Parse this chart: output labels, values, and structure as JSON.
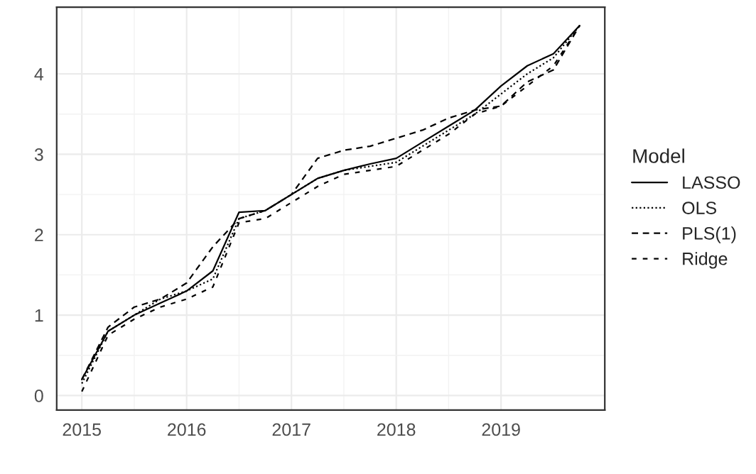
{
  "chart_data": {
    "type": "line",
    "legend_title": "Model",
    "legend": "right",
    "grid": true,
    "x": [
      2015.0,
      2015.25,
      2015.5,
      2015.75,
      2016.0,
      2016.25,
      2016.5,
      2016.75,
      2017.0,
      2017.25,
      2017.5,
      2017.75,
      2018.0,
      2018.25,
      2018.5,
      2018.75,
      2019.0,
      2019.25,
      2019.5,
      2019.75
    ],
    "series": [
      {
        "name": "LASSO",
        "color": "#000000",
        "line_style": "solid",
        "values": [
          0.2,
          0.8,
          1.0,
          1.15,
          1.3,
          1.55,
          2.28,
          2.3,
          2.5,
          2.7,
          2.8,
          2.88,
          2.95,
          3.15,
          3.35,
          3.55,
          3.85,
          4.1,
          4.25,
          4.6
        ]
      },
      {
        "name": "OLS",
        "color": "#000000",
        "line_style": "dotted",
        "values": [
          0.15,
          0.8,
          1.0,
          1.2,
          1.3,
          1.45,
          2.2,
          2.3,
          2.5,
          2.7,
          2.8,
          2.85,
          2.9,
          3.1,
          3.3,
          3.5,
          3.75,
          4.0,
          4.2,
          4.6
        ]
      },
      {
        "name": "PLS(1)",
        "color": "#000000",
        "line_style": "dashed",
        "values": [
          0.2,
          0.85,
          1.1,
          1.2,
          1.4,
          1.85,
          2.2,
          2.3,
          2.5,
          2.95,
          3.05,
          3.1,
          3.2,
          3.3,
          3.45,
          3.55,
          3.6,
          3.9,
          4.05,
          4.6
        ]
      },
      {
        "name": "Ridge",
        "color": "#000000",
        "line_style": "dashed",
        "values": [
          0.05,
          0.75,
          0.95,
          1.1,
          1.2,
          1.35,
          2.15,
          2.2,
          2.4,
          2.6,
          2.75,
          2.8,
          2.85,
          3.05,
          3.25,
          3.5,
          3.6,
          3.85,
          4.1,
          4.6
        ]
      }
    ],
    "xlim": [
      2014.76,
      2019.99
    ],
    "xticks": [
      2015,
      2016,
      2017,
      2018,
      2019
    ],
    "ylim": [
      -0.18,
      4.83
    ],
    "yticks": [
      0,
      1,
      2,
      3,
      4
    ]
  }
}
